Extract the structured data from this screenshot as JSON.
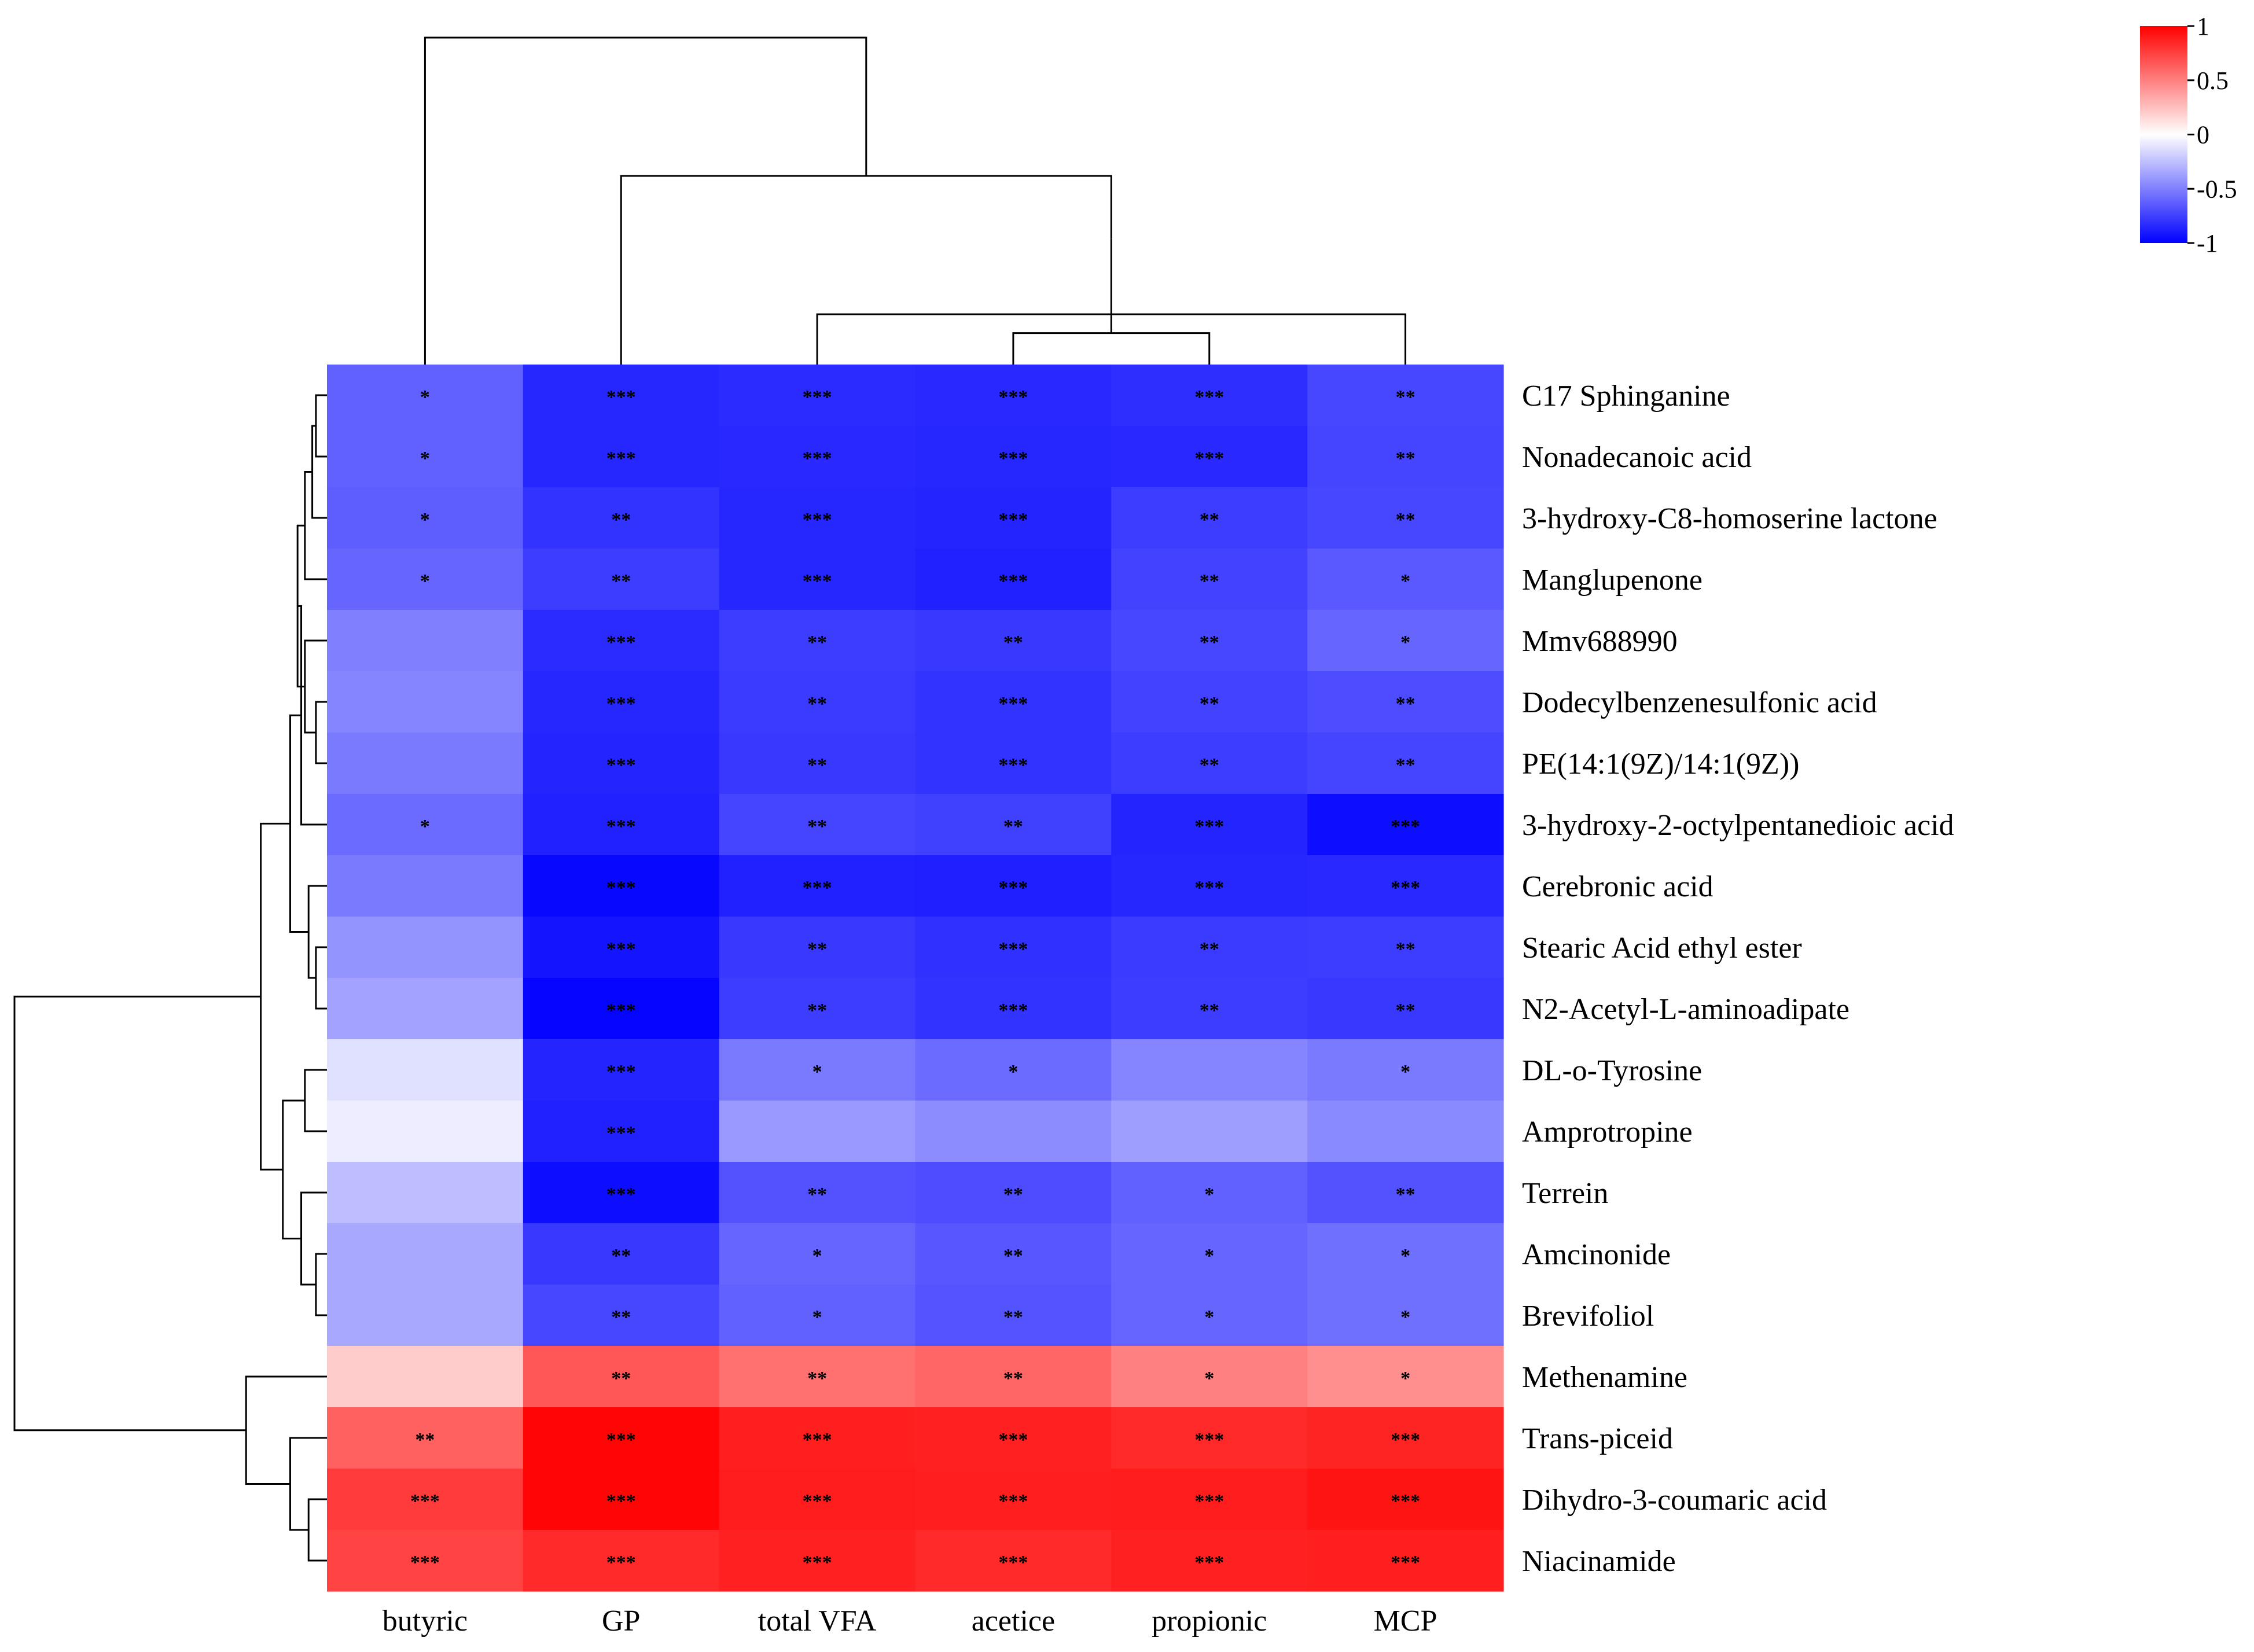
{
  "chart_data": {
    "type": "heatmap",
    "title": "",
    "columns": [
      "butyric",
      "GP",
      "total VFA",
      "acetice",
      "propionic",
      "MCP"
    ],
    "rows": [
      "C17 Sphinganine",
      "Nonadecanoic acid",
      "3-hydroxy-C8-homoserine lactone",
      "Manglupenone",
      "Mmv688990",
      "Dodecylbenzenesulfonic acid",
      "PE(14:1(9Z)/14:1(9Z))",
      "3-hydroxy-2-octylpentanedioic acid",
      "Cerebronic acid",
      "Stearic Acid ethyl ester",
      "N2-Acetyl-L-aminoadipate",
      "DL-o-Tyrosine",
      "Amprotropine",
      "Terrein",
      "Amcinonide",
      "Brevifoliol",
      "Methenamine",
      "Trans-piceid",
      "Dihydro-3-coumaric acid",
      "Niacinamide"
    ],
    "values": [
      [
        -0.62,
        -0.85,
        -0.83,
        -0.84,
        -0.82,
        -0.72
      ],
      [
        -0.62,
        -0.85,
        -0.84,
        -0.85,
        -0.84,
        -0.73
      ],
      [
        -0.63,
        -0.8,
        -0.85,
        -0.86,
        -0.76,
        -0.72
      ],
      [
        -0.6,
        -0.76,
        -0.85,
        -0.87,
        -0.74,
        -0.65
      ],
      [
        -0.5,
        -0.83,
        -0.76,
        -0.78,
        -0.72,
        -0.6
      ],
      [
        -0.48,
        -0.85,
        -0.77,
        -0.8,
        -0.74,
        -0.7
      ],
      [
        -0.52,
        -0.86,
        -0.78,
        -0.8,
        -0.76,
        -0.73
      ],
      [
        -0.58,
        -0.87,
        -0.73,
        -0.75,
        -0.86,
        -0.95
      ],
      [
        -0.52,
        -0.97,
        -0.87,
        -0.88,
        -0.85,
        -0.84
      ],
      [
        -0.42,
        -0.92,
        -0.78,
        -0.81,
        -0.77,
        -0.76
      ],
      [
        -0.36,
        -0.98,
        -0.76,
        -0.8,
        -0.76,
        -0.78
      ],
      [
        -0.12,
        -0.86,
        -0.52,
        -0.58,
        -0.48,
        -0.52
      ],
      [
        -0.07,
        -0.87,
        -0.4,
        -0.45,
        -0.38,
        -0.46
      ],
      [
        -0.26,
        -0.95,
        -0.68,
        -0.7,
        -0.62,
        -0.68
      ],
      [
        -0.34,
        -0.78,
        -0.6,
        -0.66,
        -0.6,
        -0.56
      ],
      [
        -0.34,
        -0.72,
        -0.62,
        -0.67,
        -0.6,
        -0.56
      ],
      [
        0.2,
        0.66,
        0.56,
        0.6,
        0.5,
        0.44
      ],
      [
        0.62,
        0.98,
        0.88,
        0.87,
        0.84,
        0.86
      ],
      [
        0.77,
        0.98,
        0.89,
        0.88,
        0.89,
        0.92
      ],
      [
        0.74,
        0.84,
        0.87,
        0.84,
        0.87,
        0.88
      ]
    ],
    "significance": [
      [
        "*",
        "***",
        "***",
        "***",
        "***",
        "**"
      ],
      [
        "*",
        "***",
        "***",
        "***",
        "***",
        "**"
      ],
      [
        "*",
        "**",
        "***",
        "***",
        "**",
        "**"
      ],
      [
        "*",
        "**",
        "***",
        "***",
        "**",
        "*"
      ],
      [
        "",
        "***",
        "**",
        "**",
        "**",
        "*"
      ],
      [
        "",
        "***",
        "**",
        "***",
        "**",
        "**"
      ],
      [
        "",
        "***",
        "**",
        "***",
        "**",
        "**"
      ],
      [
        "*",
        "***",
        "**",
        "**",
        "***",
        "***"
      ],
      [
        "",
        "***",
        "***",
        "***",
        "***",
        "***"
      ],
      [
        "",
        "***",
        "**",
        "***",
        "**",
        "**"
      ],
      [
        "",
        "***",
        "**",
        "***",
        "**",
        "**"
      ],
      [
        "",
        "***",
        "*",
        "*",
        "",
        "*"
      ],
      [
        "",
        "***",
        "",
        "",
        "",
        ""
      ],
      [
        "",
        "***",
        "**",
        "**",
        "*",
        "**"
      ],
      [
        "",
        "**",
        "*",
        "**",
        "*",
        "*"
      ],
      [
        "",
        "**",
        "*",
        "**",
        "*",
        "*"
      ],
      [
        "",
        "**",
        "**",
        "**",
        "*",
        "*"
      ],
      [
        "**",
        "***",
        "***",
        "***",
        "***",
        "***"
      ],
      [
        "***",
        "***",
        "***",
        "***",
        "***",
        "***"
      ],
      [
        "***",
        "***",
        "***",
        "***",
        "***",
        "***"
      ]
    ],
    "color_scale": {
      "min": -1,
      "max": 1,
      "low_color": "#0000ff",
      "mid_color": "#ffffff",
      "high_color": "#ff0000",
      "ticks": [
        "1",
        "0.5",
        "0",
        "-0.5",
        "-1"
      ],
      "placement": "top-right"
    },
    "column_dendrogram": [
      [
        3,
        4,
        0.05
      ],
      [
        2,
        5,
        0.08
      ],
      [
        7,
        6,
        0.2
      ],
      [
        1,
        8,
        0.3
      ],
      [
        0,
        9,
        0.52
      ]
    ],
    "row_dendrogram": [
      [
        0,
        1,
        0.03
      ],
      [
        20,
        2,
        0.04
      ],
      [
        21,
        3,
        0.06
      ],
      [
        5,
        6,
        0.03
      ],
      [
        4,
        23,
        0.06
      ],
      [
        22,
        24,
        0.08
      ],
      [
        25,
        7,
        0.07
      ],
      [
        9,
        10,
        0.03
      ],
      [
        8,
        27,
        0.05
      ],
      [
        26,
        28,
        0.1
      ],
      [
        11,
        12,
        0.06
      ],
      [
        14,
        15,
        0.03
      ],
      [
        13,
        31,
        0.07
      ],
      [
        30,
        32,
        0.12
      ],
      [
        29,
        33,
        0.18
      ],
      [
        18,
        19,
        0.05
      ],
      [
        17,
        35,
        0.1
      ],
      [
        16,
        36,
        0.22
      ],
      [
        34,
        37,
        0.85
      ]
    ]
  }
}
